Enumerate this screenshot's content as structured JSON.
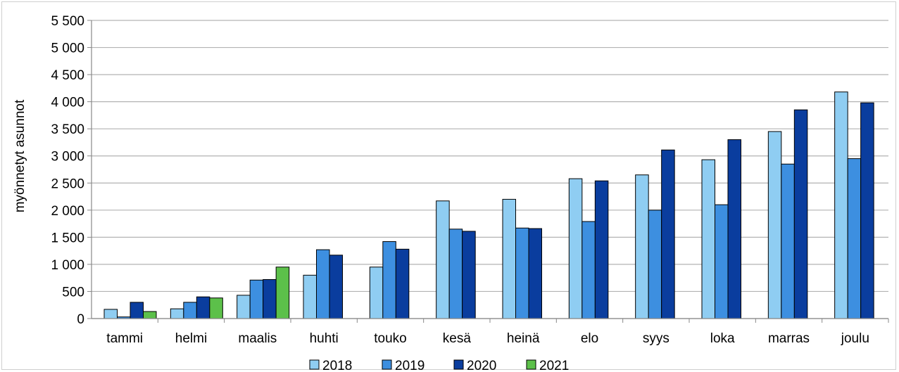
{
  "chart_data": {
    "type": "bar",
    "title": "",
    "xlabel": "",
    "ylabel": "myönnetyt asunnot",
    "ylim": [
      0,
      5500
    ],
    "ytick_values": [
      0,
      500,
      1000,
      1500,
      2000,
      2500,
      3000,
      3500,
      4000,
      4500,
      5000,
      5500
    ],
    "ytick_labels": [
      "0",
      "500",
      "1 000",
      "1 500",
      "2 000",
      "2 500",
      "3 000",
      "3 500",
      "4 000",
      "4 500",
      "5 000",
      "5 500"
    ],
    "grid": true,
    "legend_position": "bottom",
    "categories": [
      "tammi",
      "helmi",
      "maalis",
      "huhti",
      "touko",
      "kesä",
      "heinä",
      "elo",
      "syys",
      "loka",
      "marras",
      "joulu"
    ],
    "series": [
      {
        "name": "2018",
        "color": "#8fcdf2",
        "values": [
          170,
          180,
          430,
          800,
          950,
          2170,
          2200,
          2580,
          2650,
          2930,
          3450,
          4180
        ]
      },
      {
        "name": "2019",
        "color": "#3d8fe0",
        "values": [
          30,
          300,
          710,
          1270,
          1420,
          1650,
          1670,
          1790,
          2000,
          2100,
          2850,
          2950
        ]
      },
      {
        "name": "2020",
        "color": "#0a3d9e",
        "values": [
          300,
          400,
          720,
          1170,
          1280,
          1610,
          1660,
          2540,
          3110,
          3300,
          3850,
          3980
        ]
      },
      {
        "name": "2021",
        "color": "#5cc04a",
        "values": [
          130,
          380,
          950,
          null,
          null,
          null,
          null,
          null,
          null,
          null,
          null,
          null
        ]
      }
    ]
  }
}
